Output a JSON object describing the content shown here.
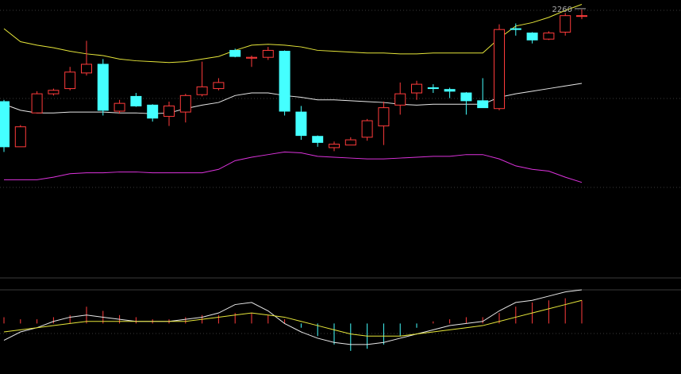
{
  "chart_data": {
    "type": "candlestick",
    "grid": true,
    "legend": "none",
    "colors": {
      "background": "#000000",
      "up": "#ff3b3b",
      "down": "#44ffff",
      "upper_band": "#e6e63a",
      "middle_band": "#e8e8e8",
      "lower_band": "#dd33dd",
      "grid": "#3a3a3a",
      "label": "#aaaaaa"
    },
    "price_range": [
      1950,
      2270
    ],
    "high_label": "2260",
    "candles": [
      {
        "o": 2153,
        "c": 2101,
        "h": 2155,
        "l": 2095
      },
      {
        "o": 2101,
        "c": 2124,
        "h": 2126,
        "l": 2101
      },
      {
        "o": 2140,
        "c": 2162,
        "h": 2165,
        "l": 2140
      },
      {
        "o": 2162,
        "c": 2166,
        "h": 2168,
        "l": 2160
      },
      {
        "o": 2168,
        "c": 2187,
        "h": 2193,
        "l": 2166
      },
      {
        "o": 2186,
        "c": 2196,
        "h": 2223,
        "l": 2183
      },
      {
        "o": 2196,
        "c": 2143,
        "h": 2202,
        "l": 2137
      },
      {
        "o": 2142,
        "c": 2151,
        "h": 2155,
        "l": 2139
      },
      {
        "o": 2159,
        "c": 2148,
        "h": 2163,
        "l": 2147
      },
      {
        "o": 2149,
        "c": 2134,
        "h": 2150,
        "l": 2130
      },
      {
        "o": 2136,
        "c": 2148,
        "h": 2153,
        "l": 2125
      },
      {
        "o": 2141,
        "c": 2160,
        "h": 2162,
        "l": 2129
      },
      {
        "o": 2161,
        "c": 2170,
        "h": 2199,
        "l": 2159
      },
      {
        "o": 2168,
        "c": 2175,
        "h": 2180,
        "l": 2166
      },
      {
        "o": 2212,
        "c": 2205,
        "h": 2214,
        "l": 2204
      },
      {
        "o": 2203,
        "c": 2204,
        "h": 2206,
        "l": 2193
      },
      {
        "o": 2204,
        "c": 2212,
        "h": 2216,
        "l": 2201
      },
      {
        "o": 2211,
        "c": 2142,
        "h": 2212,
        "l": 2137
      },
      {
        "o": 2141,
        "c": 2114,
        "h": 2148,
        "l": 2109
      },
      {
        "o": 2113,
        "c": 2106,
        "h": 2114,
        "l": 2101
      },
      {
        "o": 2100,
        "c": 2104,
        "h": 2107,
        "l": 2096
      },
      {
        "o": 2103,
        "c": 2109,
        "h": 2112,
        "l": 2103
      },
      {
        "o": 2112,
        "c": 2131,
        "h": 2133,
        "l": 2108
      },
      {
        "o": 2125,
        "c": 2146,
        "h": 2153,
        "l": 2103
      },
      {
        "o": 2149,
        "c": 2162,
        "h": 2175,
        "l": 2138
      },
      {
        "o": 2163,
        "c": 2173,
        "h": 2177,
        "l": 2155
      },
      {
        "o": 2169,
        "c": 2168,
        "h": 2173,
        "l": 2163
      },
      {
        "o": 2167,
        "c": 2165,
        "h": 2169,
        "l": 2157
      },
      {
        "o": 2163,
        "c": 2154,
        "h": 2164,
        "l": 2138
      },
      {
        "o": 2154,
        "c": 2146,
        "h": 2180,
        "l": 2146
      },
      {
        "o": 2145,
        "c": 2236,
        "h": 2242,
        "l": 2143
      },
      {
        "o": 2237,
        "c": 2236,
        "h": 2243,
        "l": 2229
      },
      {
        "o": 2232,
        "c": 2224,
        "h": 2233,
        "l": 2220
      },
      {
        "o": 2225,
        "c": 2232,
        "h": 2234,
        "l": 2224
      },
      {
        "o": 2233,
        "c": 2252,
        "h": 2255,
        "l": 2229
      },
      {
        "o": 2252,
        "c": 2252,
        "h": 2259,
        "l": 2248
      }
    ],
    "upper_band": [
      2237,
      2222,
      2218,
      2215,
      2211,
      2208,
      2206,
      2202,
      2200,
      2199,
      2198,
      2199,
      2202,
      2205,
      2212,
      2218,
      2219,
      2218,
      2216,
      2212,
      2211,
      2210,
      2209,
      2209,
      2208,
      2208,
      2209,
      2209,
      2209,
      2209,
      2226,
      2240,
      2244,
      2250,
      2258,
      2265
    ],
    "middle_band": [
      2150,
      2143,
      2140,
      2140,
      2141,
      2141,
      2141,
      2140,
      2140,
      2139,
      2140,
      2145,
      2149,
      2152,
      2160,
      2163,
      2163,
      2160,
      2158,
      2155,
      2155,
      2154,
      2153,
      2152,
      2150,
      2149,
      2150,
      2150,
      2150,
      2150,
      2158,
      2162,
      2165,
      2168,
      2171,
      2174
    ],
    "lower_band": [
      2063,
      2063,
      2063,
      2066,
      2070,
      2071,
      2071,
      2072,
      2072,
      2071,
      2071,
      2071,
      2071,
      2075,
      2085,
      2089,
      2092,
      2095,
      2094,
      2090,
      2089,
      2088,
      2087,
      2087,
      2088,
      2089,
      2090,
      2090,
      2092,
      2092,
      2087,
      2079,
      2075,
      2073,
      2066,
      2060
    ],
    "indicator": {
      "range": [
        -12,
        8
      ],
      "bars": [
        1.5,
        1.0,
        1.0,
        1.5,
        2.0,
        4.0,
        3.0,
        2.0,
        1.5,
        1.0,
        1.0,
        1.5,
        2.0,
        2.0,
        2.5,
        2.5,
        2.0,
        1.0,
        -1.0,
        -3.0,
        -5.0,
        -6.5,
        -6.0,
        -5.0,
        -3.0,
        -1.0,
        0.5,
        1.0,
        1.5,
        1.5,
        2.5,
        4.0,
        5.0,
        5.5,
        6.0,
        5.5
      ],
      "diff_line": [
        -4.0,
        -2.0,
        -1.0,
        0.5,
        1.5,
        2.0,
        1.5,
        1.0,
        0.5,
        0.5,
        0.5,
        1.0,
        1.5,
        2.5,
        4.5,
        5.0,
        3.0,
        0.0,
        -2.0,
        -3.5,
        -4.5,
        -5.0,
        -5.0,
        -4.5,
        -3.5,
        -2.5,
        -1.5,
        -0.5,
        0.0,
        0.5,
        3.0,
        5.0,
        5.5,
        6.5,
        7.5,
        8.0
      ],
      "dea_line": [
        -2.0,
        -1.5,
        -1.0,
        -0.5,
        0.0,
        0.5,
        0.5,
        0.5,
        0.5,
        0.5,
        0.5,
        0.5,
        1.0,
        1.5,
        2.0,
        2.5,
        2.0,
        1.5,
        0.5,
        -0.5,
        -1.5,
        -2.5,
        -3.0,
        -3.0,
        -3.0,
        -2.5,
        -2.0,
        -1.5,
        -1.0,
        -0.5,
        0.5,
        1.5,
        2.5,
        3.5,
        4.5,
        5.5
      ]
    }
  }
}
